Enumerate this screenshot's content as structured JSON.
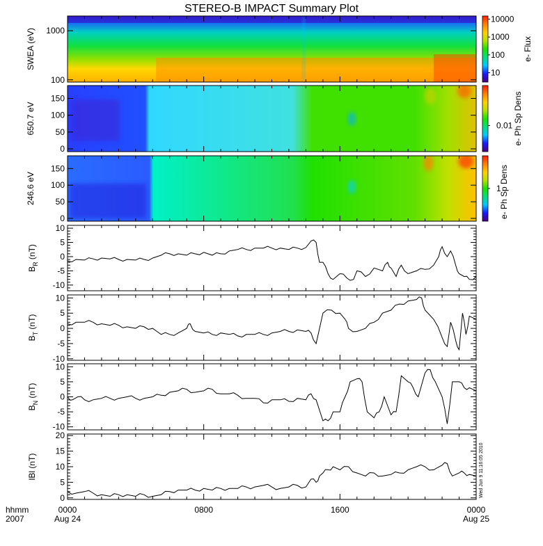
{
  "title": "STEREO-B IMPACT Summary Plot",
  "timestamp_vertical": "Wed Jun  9 11:16:05 2010",
  "colors": {
    "colormap": [
      "#4b0080",
      "#1a1aff",
      "#00c8ff",
      "#00e080",
      "#20e000",
      "#b8e000",
      "#ffd000",
      "#ff8000",
      "#ff2000"
    ],
    "line": "#000000"
  },
  "x_axis": {
    "label_row1": "hhmm",
    "label_row2": "2007",
    "ticks": [
      {
        "hours": 0,
        "time": "0000",
        "date": "Aug 24"
      },
      {
        "hours": 8,
        "time": "0800",
        "date": ""
      },
      {
        "hours": 16,
        "time": "1600",
        "date": ""
      },
      {
        "hours": 24,
        "time": "0000",
        "date": "Aug 25"
      }
    ]
  },
  "chart_data": [
    {
      "id": "swea",
      "type": "heatmap",
      "ylabel": "SWEA (eV)",
      "yscale": "log",
      "ylim": [
        90,
        2000
      ],
      "yticks": [
        "100",
        "1000"
      ],
      "colorbar_label": "e- Flux",
      "colorbar_ticks": [
        "10",
        "100",
        "1000",
        "10000"
      ],
      "colorbar_range": [
        3,
        15000
      ],
      "colorbar_scale": "log",
      "xlim_hours": [
        0,
        24
      ]
    },
    {
      "id": "pad650",
      "type": "heatmap",
      "ylabel": "650.7 eV",
      "ylim": [
        0,
        180
      ],
      "yticks": [
        "0",
        "50",
        "100",
        "150"
      ],
      "colorbar_label": "e- Ph Sp Dens",
      "colorbar_ticks": [
        "0.01"
      ],
      "colorbar_scale": "log",
      "xlim_hours": [
        0,
        24
      ]
    },
    {
      "id": "pad246",
      "type": "heatmap",
      "ylabel": "246.6 eV",
      "ylim": [
        0,
        180
      ],
      "yticks": [
        "0",
        "50",
        "100",
        "150"
      ],
      "colorbar_label": "e- Ph Sp Dens",
      "colorbar_ticks": [
        "1"
      ],
      "colorbar_scale": "log",
      "xlim_hours": [
        0,
        24
      ]
    },
    {
      "id": "br",
      "type": "line",
      "ylabel_main": "B",
      "ylabel_sub": "R",
      "ylabel_unit": " (nT)",
      "ylim": [
        -12,
        11
      ],
      "yticks": [
        "-10",
        "-5",
        "0",
        "5",
        "10"
      ],
      "ytick_values": [
        -10,
        -5,
        0,
        5,
        10
      ],
      "x": [
        0,
        0.5,
        1,
        1.5,
        2,
        2.5,
        3,
        3.5,
        4,
        4.5,
        5,
        5.5,
        6,
        6.5,
        7,
        7.5,
        8,
        8.5,
        9,
        9.5,
        10,
        10.5,
        11,
        11.5,
        12,
        12.5,
        13,
        13.5,
        14,
        14.3,
        14.6,
        14.8,
        15,
        15.3,
        15.6,
        16,
        16.4,
        16.8,
        17,
        17.5,
        18,
        18.5,
        18.8,
        19,
        19.3,
        19.6,
        20,
        20.5,
        21,
        21.5,
        21.8,
        22,
        22.3,
        22.5,
        22.8,
        23,
        23.3,
        23.6,
        24
      ],
      "y": [
        -1.5,
        -1,
        -1.2,
        -0.8,
        -0.5,
        -0.8,
        -1,
        -1,
        -1.2,
        -1,
        -0.5,
        0.5,
        1,
        1,
        0.5,
        1,
        1.5,
        0.5,
        1,
        2,
        2.5,
        2.5,
        3,
        3,
        3,
        3,
        2.5,
        3,
        3.2,
        5.5,
        5,
        -2,
        -2,
        -6,
        -8,
        -6,
        -7.5,
        -8,
        -5,
        -7,
        -4,
        -5,
        -2,
        -4,
        -7,
        -3,
        -6,
        -5,
        -4.5,
        -3,
        0,
        3.5,
        0,
        2,
        -3,
        -6,
        -7,
        -8,
        -7
      ]
    },
    {
      "id": "bt",
      "type": "line",
      "ylabel_main": "B",
      "ylabel_sub": "T",
      "ylabel_unit": " (nT)",
      "ylim": [
        -10.5,
        11
      ],
      "yticks": [
        "-10",
        "-5",
        "0",
        "5",
        "10"
      ],
      "ytick_values": [
        -10,
        -5,
        0,
        5,
        10
      ],
      "x": [
        0,
        0.5,
        1,
        1.5,
        2,
        2.5,
        3,
        3.5,
        4,
        4.5,
        5,
        5.5,
        6,
        6.5,
        7,
        7.2,
        7.5,
        8,
        8.5,
        9,
        9.5,
        10,
        10.5,
        11,
        11.5,
        12,
        12.5,
        13,
        13.5,
        14,
        14.3,
        14.6,
        15,
        15.5,
        16,
        16.3,
        16.5,
        17,
        17.5,
        18,
        18.5,
        19,
        19.5,
        20,
        20.5,
        20.8,
        21,
        21.5,
        22,
        22.3,
        22.5,
        22.8,
        23,
        23.2,
        23.4,
        23.6,
        24
      ],
      "y": [
        1.5,
        2,
        2,
        2,
        1.5,
        1,
        1,
        0.5,
        0,
        0.5,
        0,
        -2,
        -2,
        -1.5,
        0,
        1.5,
        -1,
        -1.5,
        -2,
        -1.5,
        -2,
        -2.5,
        -2,
        -2,
        -2,
        -1.5,
        -1,
        -1,
        -0.5,
        -1,
        -1.5,
        -5,
        5,
        6,
        5,
        3,
        0,
        -1,
        0,
        2,
        5,
        6,
        8,
        9,
        9.5,
        10,
        6,
        3,
        -3,
        -6,
        2,
        -4,
        -7,
        5,
        -2,
        4,
        3
      ]
    },
    {
      "id": "bn",
      "type": "line",
      "ylabel_main": "B",
      "ylabel_sub": "N",
      "ylabel_unit": " (nT)",
      "ylim": [
        -11,
        11
      ],
      "yticks": [
        "-10",
        "-5",
        "0",
        "5",
        "10"
      ],
      "ytick_values": [
        -10,
        -5,
        0,
        5,
        10
      ],
      "x": [
        0,
        0.3,
        0.6,
        1,
        1.5,
        2,
        2.5,
        3,
        3.5,
        4,
        4.5,
        5,
        5.5,
        6,
        6.5,
        7,
        7.5,
        8,
        8.5,
        9,
        9.5,
        10,
        10.5,
        11,
        11.5,
        12,
        12.5,
        13,
        13.5,
        14,
        14.3,
        14.6,
        15,
        15.3,
        15.6,
        16,
        16.3,
        16.6,
        17,
        17.3,
        17.6,
        18,
        18.3,
        18.6,
        19,
        19.3,
        19.6,
        20,
        20.3,
        20.6,
        21,
        21.3,
        21.6,
        22,
        22.3,
        22.6,
        23,
        23.3,
        23.6,
        24
      ],
      "y": [
        0,
        -1,
        0,
        -1,
        -1,
        -0.5,
        -0.5,
        -0.5,
        0,
        -0.5,
        -0.5,
        0,
        0.5,
        1.5,
        2,
        2.5,
        1.5,
        2,
        2.5,
        1,
        1,
        0.5,
        -0.5,
        -0.5,
        -2,
        -1,
        -1,
        -1.5,
        -0.5,
        -1,
        1,
        -1,
        -8,
        -8,
        -5,
        -5,
        0,
        5,
        6,
        5,
        -5,
        -7,
        -5,
        0,
        -6,
        -5,
        7,
        5,
        3,
        0,
        8,
        9,
        5,
        0,
        -9,
        5,
        5,
        3,
        3,
        2
      ]
    },
    {
      "id": "bmag",
      "type": "line",
      "ylabel": "lBl (nT)",
      "ylim": [
        -0.5,
        20.5
      ],
      "yticks": [
        "0",
        "5",
        "10",
        "15",
        "20"
      ],
      "ytick_values": [
        0,
        5,
        10,
        15,
        20
      ],
      "x": [
        0,
        0.5,
        1,
        1.5,
        2,
        2.5,
        3,
        3.5,
        4,
        4.5,
        5,
        5.5,
        6,
        6.5,
        7,
        7.5,
        8,
        8.5,
        9,
        9.5,
        10,
        10.5,
        11,
        11.5,
        12,
        12.5,
        13,
        13.5,
        14,
        14.3,
        14.6,
        14.8,
        15,
        15.3,
        15.6,
        16,
        16.5,
        17,
        17.5,
        18,
        18.5,
        19,
        19.5,
        20,
        20.5,
        21,
        21.5,
        22,
        22.3,
        22.6,
        23,
        23.3,
        23.6,
        24
      ],
      "y": [
        2,
        1.5,
        2,
        1.5,
        1,
        0.5,
        1,
        1,
        0.5,
        1,
        0.5,
        1,
        2,
        2.5,
        2.5,
        2.5,
        3,
        2.5,
        3,
        3,
        3,
        3.5,
        3.5,
        4,
        3.5,
        3,
        3.5,
        4,
        3.5,
        6,
        5,
        7,
        8,
        9,
        10,
        9,
        10,
        8,
        7,
        8,
        7,
        7.5,
        8,
        9,
        10,
        10,
        9,
        10.5,
        11,
        7,
        8,
        8,
        7.5,
        7
      ]
    }
  ]
}
